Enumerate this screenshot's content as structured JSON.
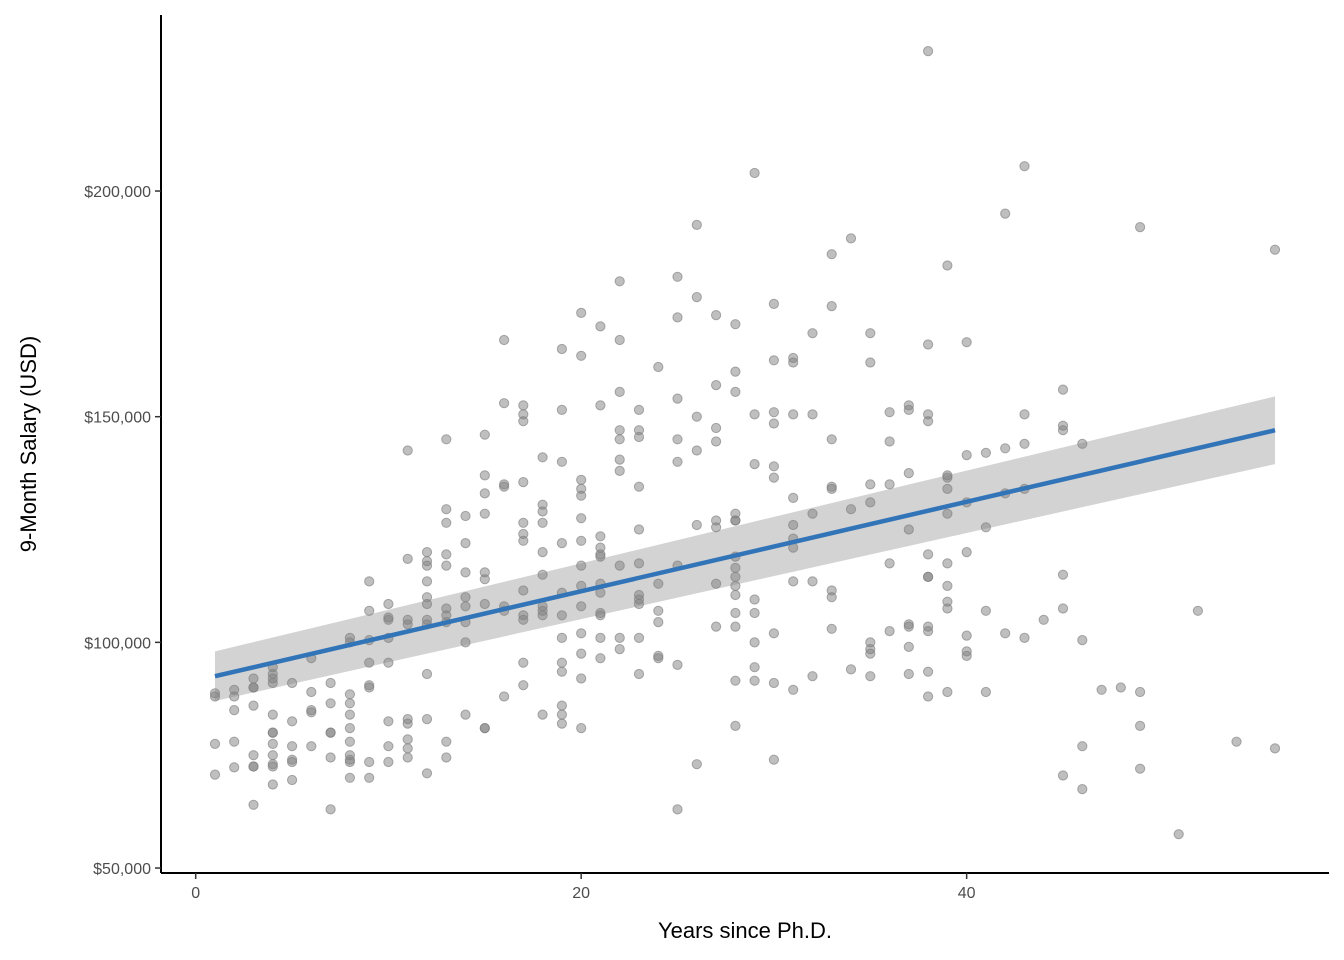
{
  "chart_data": {
    "type": "scatter",
    "title": "",
    "xlabel": "Years since Ph.D.",
    "ylabel": "9-Month Salary (USD)",
    "xlim": [
      -1.8,
      58.8
    ],
    "ylim": [
      48900,
      239000
    ],
    "x_ticks": [
      0,
      20,
      40
    ],
    "x_tick_labels": [
      "0",
      "20",
      "40"
    ],
    "y_ticks": [
      50000,
      100000,
      150000,
      200000
    ],
    "y_tick_labels": [
      "$50,000",
      "$100,000",
      "$150,000",
      "$200,000"
    ],
    "grid": false,
    "point_color": "#7f7f7f",
    "point_alpha": 0.5,
    "line_color": "#3274b8",
    "band_color": "#d3d3d3",
    "fit": {
      "x": [
        1,
        56
      ],
      "y": [
        92500,
        147000
      ],
      "ci_lower": [
        87000,
        139500
      ],
      "ci_upper": [
        98000,
        154500
      ]
    },
    "points": [
      [
        1,
        88700
      ],
      [
        1,
        88000
      ],
      [
        1,
        77500
      ],
      [
        1,
        70700
      ],
      [
        2,
        89500
      ],
      [
        2,
        88000
      ],
      [
        2,
        85000
      ],
      [
        2,
        78000
      ],
      [
        2,
        72300
      ],
      [
        3,
        92000
      ],
      [
        3,
        90000
      ],
      [
        3,
        90000
      ],
      [
        3,
        86000
      ],
      [
        3,
        75000
      ],
      [
        3,
        72500
      ],
      [
        3,
        72500
      ],
      [
        3,
        64000
      ],
      [
        4,
        94500
      ],
      [
        4,
        93000
      ],
      [
        4,
        92000
      ],
      [
        4,
        91000
      ],
      [
        4,
        84000
      ],
      [
        4,
        80000
      ],
      [
        4,
        80000
      ],
      [
        4,
        77500
      ],
      [
        4,
        75000
      ],
      [
        4,
        73000
      ],
      [
        4,
        72500
      ],
      [
        4,
        68500
      ],
      [
        5,
        91000
      ],
      [
        5,
        82500
      ],
      [
        5,
        77000
      ],
      [
        5,
        74000
      ],
      [
        5,
        73500
      ],
      [
        5,
        69500
      ],
      [
        6,
        96500
      ],
      [
        6,
        89000
      ],
      [
        6,
        85000
      ],
      [
        6,
        84500
      ],
      [
        6,
        77000
      ],
      [
        7,
        91000
      ],
      [
        7,
        86500
      ],
      [
        7,
        80000
      ],
      [
        7,
        80000
      ],
      [
        7,
        74500
      ],
      [
        7,
        63000
      ],
      [
        8,
        101000
      ],
      [
        8,
        100000
      ],
      [
        8,
        88500
      ],
      [
        8,
        86500
      ],
      [
        8,
        84000
      ],
      [
        8,
        81000
      ],
      [
        8,
        78000
      ],
      [
        8,
        75000
      ],
      [
        8,
        74000
      ],
      [
        8,
        73500
      ],
      [
        8,
        70000
      ],
      [
        9,
        113500
      ],
      [
        9,
        107000
      ],
      [
        9,
        100500
      ],
      [
        9,
        95500
      ],
      [
        9,
        90500
      ],
      [
        9,
        90000
      ],
      [
        9,
        73500
      ],
      [
        9,
        70000
      ],
      [
        10,
        108500
      ],
      [
        10,
        105500
      ],
      [
        10,
        105000
      ],
      [
        10,
        101000
      ],
      [
        10,
        95500
      ],
      [
        10,
        82500
      ],
      [
        10,
        77000
      ],
      [
        10,
        73500
      ],
      [
        11,
        142500
      ],
      [
        11,
        118500
      ],
      [
        11,
        105000
      ],
      [
        11,
        104000
      ],
      [
        11,
        83000
      ],
      [
        11,
        82000
      ],
      [
        11,
        78500
      ],
      [
        11,
        76500
      ],
      [
        11,
        74500
      ],
      [
        12,
        120000
      ],
      [
        12,
        118000
      ],
      [
        12,
        117000
      ],
      [
        12,
        113500
      ],
      [
        12,
        110000
      ],
      [
        12,
        108500
      ],
      [
        12,
        105000
      ],
      [
        12,
        104000
      ],
      [
        12,
        93000
      ],
      [
        12,
        83000
      ],
      [
        12,
        71000
      ],
      [
        13,
        145000
      ],
      [
        13,
        129500
      ],
      [
        13,
        126500
      ],
      [
        13,
        119500
      ],
      [
        13,
        117000
      ],
      [
        13,
        107500
      ],
      [
        13,
        106000
      ],
      [
        13,
        104500
      ],
      [
        13,
        78000
      ],
      [
        13,
        74500
      ],
      [
        14,
        128000
      ],
      [
        14,
        122000
      ],
      [
        14,
        115500
      ],
      [
        14,
        110000
      ],
      [
        14,
        108000
      ],
      [
        14,
        104500
      ],
      [
        14,
        100000
      ],
      [
        14,
        84000
      ],
      [
        15,
        146000
      ],
      [
        15,
        137000
      ],
      [
        15,
        133000
      ],
      [
        15,
        128500
      ],
      [
        15,
        115500
      ],
      [
        15,
        114000
      ],
      [
        15,
        108500
      ],
      [
        15,
        81000
      ],
      [
        15,
        81000
      ],
      [
        16,
        167000
      ],
      [
        16,
        153000
      ],
      [
        16,
        135000
      ],
      [
        16,
        134500
      ],
      [
        16,
        108000
      ],
      [
        16,
        107000
      ],
      [
        16,
        88000
      ],
      [
        17,
        152500
      ],
      [
        17,
        150500
      ],
      [
        17,
        149000
      ],
      [
        17,
        135500
      ],
      [
        17,
        126500
      ],
      [
        17,
        124000
      ],
      [
        17,
        122500
      ],
      [
        17,
        111500
      ],
      [
        17,
        106000
      ],
      [
        17,
        105000
      ],
      [
        17,
        95500
      ],
      [
        17,
        90500
      ],
      [
        18,
        141000
      ],
      [
        18,
        130500
      ],
      [
        18,
        129000
      ],
      [
        18,
        126500
      ],
      [
        18,
        120000
      ],
      [
        18,
        115000
      ],
      [
        18,
        108000
      ],
      [
        18,
        107000
      ],
      [
        18,
        106000
      ],
      [
        18,
        84000
      ],
      [
        19,
        165000
      ],
      [
        19,
        151500
      ],
      [
        19,
        140000
      ],
      [
        19,
        122000
      ],
      [
        19,
        111000
      ],
      [
        19,
        106000
      ],
      [
        19,
        101000
      ],
      [
        19,
        95500
      ],
      [
        19,
        93500
      ],
      [
        19,
        86000
      ],
      [
        19,
        84000
      ],
      [
        19,
        82000
      ],
      [
        20,
        173000
      ],
      [
        20,
        163500
      ],
      [
        20,
        136000
      ],
      [
        20,
        134000
      ],
      [
        20,
        132500
      ],
      [
        20,
        127500
      ],
      [
        20,
        122500
      ],
      [
        20,
        117000
      ],
      [
        20,
        112500
      ],
      [
        20,
        108000
      ],
      [
        20,
        102000
      ],
      [
        20,
        97500
      ],
      [
        20,
        92000
      ],
      [
        20,
        81000
      ],
      [
        21,
        170000
      ],
      [
        21,
        152500
      ],
      [
        21,
        123500
      ],
      [
        21,
        121000
      ],
      [
        21,
        119500
      ],
      [
        21,
        119000
      ],
      [
        21,
        113000
      ],
      [
        21,
        111000
      ],
      [
        21,
        106500
      ],
      [
        21,
        106000
      ],
      [
        21,
        101000
      ],
      [
        21,
        96500
      ],
      [
        22,
        180000
      ],
      [
        22,
        167000
      ],
      [
        22,
        155500
      ],
      [
        22,
        147000
      ],
      [
        22,
        145000
      ],
      [
        22,
        140500
      ],
      [
        22,
        138000
      ],
      [
        22,
        117000
      ],
      [
        22,
        101000
      ],
      [
        22,
        98500
      ],
      [
        23,
        151500
      ],
      [
        23,
        147000
      ],
      [
        23,
        145500
      ],
      [
        23,
        134500
      ],
      [
        23,
        125000
      ],
      [
        23,
        117500
      ],
      [
        23,
        110500
      ],
      [
        23,
        109500
      ],
      [
        23,
        108500
      ],
      [
        23,
        101000
      ],
      [
        23,
        93000
      ],
      [
        24,
        161000
      ],
      [
        24,
        113000
      ],
      [
        24,
        107000
      ],
      [
        24,
        104500
      ],
      [
        24,
        97000
      ],
      [
        24,
        96500
      ],
      [
        25,
        181000
      ],
      [
        25,
        172000
      ],
      [
        25,
        154000
      ],
      [
        25,
        145000
      ],
      [
        25,
        140000
      ],
      [
        25,
        117000
      ],
      [
        25,
        95000
      ],
      [
        25,
        63000
      ],
      [
        26,
        192500
      ],
      [
        26,
        176500
      ],
      [
        26,
        150000
      ],
      [
        26,
        142500
      ],
      [
        26,
        126000
      ],
      [
        26,
        73000
      ],
      [
        27,
        172500
      ],
      [
        27,
        157000
      ],
      [
        27,
        147500
      ],
      [
        27,
        144500
      ],
      [
        27,
        127000
      ],
      [
        27,
        125500
      ],
      [
        27,
        113000
      ],
      [
        27,
        103500
      ],
      [
        28,
        170500
      ],
      [
        28,
        160000
      ],
      [
        28,
        155500
      ],
      [
        28,
        128500
      ],
      [
        28,
        127000
      ],
      [
        28,
        127000
      ],
      [
        28,
        119000
      ],
      [
        28,
        116500
      ],
      [
        28,
        114500
      ],
      [
        28,
        112500
      ],
      [
        28,
        110500
      ],
      [
        28,
        106500
      ],
      [
        28,
        103500
      ],
      [
        28,
        91500
      ],
      [
        28,
        81500
      ],
      [
        29,
        204000
      ],
      [
        29,
        150500
      ],
      [
        29,
        139500
      ],
      [
        29,
        109500
      ],
      [
        29,
        106500
      ],
      [
        29,
        100000
      ],
      [
        29,
        94500
      ],
      [
        29,
        91500
      ],
      [
        30,
        175000
      ],
      [
        30,
        162500
      ],
      [
        30,
        151000
      ],
      [
        30,
        148500
      ],
      [
        30,
        139000
      ],
      [
        30,
        136500
      ],
      [
        30,
        102000
      ],
      [
        30,
        91000
      ],
      [
        30,
        74000
      ],
      [
        31,
        163000
      ],
      [
        31,
        162000
      ],
      [
        31,
        150500
      ],
      [
        31,
        132000
      ],
      [
        31,
        126000
      ],
      [
        31,
        123000
      ],
      [
        31,
        121000
      ],
      [
        31,
        113500
      ],
      [
        31,
        89500
      ],
      [
        32,
        168500
      ],
      [
        32,
        150500
      ],
      [
        32,
        128500
      ],
      [
        32,
        113500
      ],
      [
        32,
        92500
      ],
      [
        33,
        186000
      ],
      [
        33,
        174500
      ],
      [
        33,
        145000
      ],
      [
        33,
        134500
      ],
      [
        33,
        134000
      ],
      [
        33,
        111500
      ],
      [
        33,
        110000
      ],
      [
        33,
        103000
      ],
      [
        34,
        189500
      ],
      [
        34,
        129500
      ],
      [
        34,
        94000
      ],
      [
        35,
        168500
      ],
      [
        35,
        162000
      ],
      [
        35,
        135000
      ],
      [
        35,
        131000
      ],
      [
        35,
        100000
      ],
      [
        35,
        98500
      ],
      [
        35,
        97500
      ],
      [
        35,
        92500
      ],
      [
        36,
        151000
      ],
      [
        36,
        144500
      ],
      [
        36,
        135000
      ],
      [
        36,
        117500
      ],
      [
        36,
        102500
      ],
      [
        37,
        152500
      ],
      [
        37,
        151500
      ],
      [
        37,
        137500
      ],
      [
        37,
        125000
      ],
      [
        37,
        104000
      ],
      [
        37,
        103500
      ],
      [
        37,
        99000
      ],
      [
        37,
        93000
      ],
      [
        38,
        231000
      ],
      [
        38,
        166000
      ],
      [
        38,
        150500
      ],
      [
        38,
        149000
      ],
      [
        38,
        119500
      ],
      [
        38,
        114500
      ],
      [
        38,
        114500
      ],
      [
        38,
        103500
      ],
      [
        38,
        102500
      ],
      [
        38,
        93500
      ],
      [
        38,
        88000
      ],
      [
        39,
        183500
      ],
      [
        39,
        137000
      ],
      [
        39,
        136500
      ],
      [
        39,
        134000
      ],
      [
        39,
        128500
      ],
      [
        39,
        117500
      ],
      [
        39,
        112500
      ],
      [
        39,
        109000
      ],
      [
        39,
        107500
      ],
      [
        39,
        89000
      ],
      [
        40,
        166500
      ],
      [
        40,
        141500
      ],
      [
        40,
        131000
      ],
      [
        40,
        120000
      ],
      [
        40,
        101500
      ],
      [
        40,
        98000
      ],
      [
        40,
        97000
      ],
      [
        41,
        142000
      ],
      [
        41,
        125500
      ],
      [
        41,
        107000
      ],
      [
        41,
        89000
      ],
      [
        42,
        195000
      ],
      [
        42,
        143000
      ],
      [
        42,
        133000
      ],
      [
        42,
        102000
      ],
      [
        43,
        205500
      ],
      [
        43,
        150500
      ],
      [
        43,
        144000
      ],
      [
        43,
        134000
      ],
      [
        43,
        101000
      ],
      [
        44,
        105000
      ],
      [
        45,
        156000
      ],
      [
        45,
        148000
      ],
      [
        45,
        147000
      ],
      [
        45,
        115000
      ],
      [
        45,
        107500
      ],
      [
        45,
        70500
      ],
      [
        46,
        144000
      ],
      [
        46,
        100500
      ],
      [
        46,
        77000
      ],
      [
        46,
        67500
      ],
      [
        47,
        89500
      ],
      [
        48,
        90000
      ],
      [
        49,
        192000
      ],
      [
        49,
        89000
      ],
      [
        49,
        81500
      ],
      [
        49,
        72000
      ],
      [
        51,
        57500
      ],
      [
        52,
        107000
      ],
      [
        54,
        78000
      ],
      [
        56,
        187000
      ],
      [
        56,
        76500
      ]
    ]
  }
}
